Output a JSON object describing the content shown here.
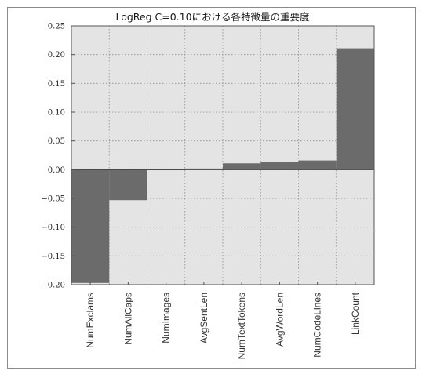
{
  "chart_data": {
    "type": "bar",
    "title": "LogReg C=0.10における各特徴量の重要度",
    "xlabel": "",
    "ylabel": "",
    "categories": [
      "NumExclams",
      "NumAllCaps",
      "NumImages",
      "AvgSentLen",
      "NumTextTokens",
      "AvgWordLen",
      "NumCodeLines",
      "LinkCount"
    ],
    "values": [
      -0.197,
      -0.053,
      0.0,
      0.002,
      0.011,
      0.013,
      0.016,
      0.211
    ],
    "ylim": [
      -0.2,
      0.25
    ],
    "yticks": [
      -0.2,
      -0.15,
      -0.1,
      -0.05,
      0.0,
      0.05,
      0.1,
      0.15,
      0.2,
      0.25
    ],
    "ytick_labels": [
      "−0.20",
      "−0.15",
      "−0.10",
      "−0.05",
      "0.00",
      "0.05",
      "0.10",
      "0.15",
      "0.20",
      "0.25"
    ],
    "grid": true,
    "colors": {
      "bar": "#6b6b6b",
      "plot_background": "#e4e4e4",
      "grid": "#8c8c8c",
      "axes": "#555555"
    }
  }
}
